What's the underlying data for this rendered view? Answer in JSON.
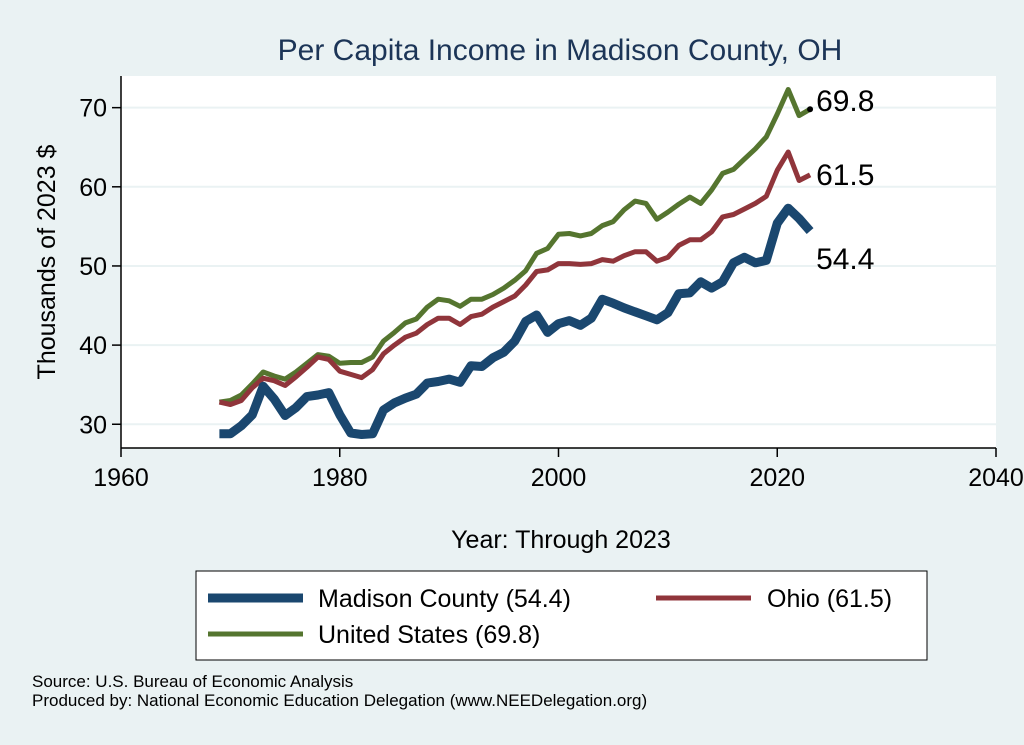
{
  "chart_data": {
    "type": "line",
    "title": "Per Capita Income in Madison County, OH",
    "xlabel": "Year: Through 2023",
    "ylabel": "Thousands of 2023 $",
    "xlim": [
      1960,
      2040
    ],
    "ylim": [
      27,
      74
    ],
    "xticks": [
      1960,
      1980,
      2000,
      2020,
      2040
    ],
    "yticks": [
      30,
      40,
      50,
      60,
      70
    ],
    "grid": true,
    "x": [
      1969,
      1970,
      1971,
      1972,
      1973,
      1974,
      1975,
      1976,
      1977,
      1978,
      1979,
      1980,
      1981,
      1982,
      1983,
      1984,
      1985,
      1986,
      1987,
      1988,
      1989,
      1990,
      1991,
      1992,
      1993,
      1994,
      1995,
      1996,
      1997,
      1998,
      1999,
      2000,
      2001,
      2002,
      2003,
      2004,
      2005,
      2006,
      2007,
      2008,
      2009,
      2010,
      2011,
      2012,
      2013,
      2014,
      2015,
      2016,
      2017,
      2018,
      2019,
      2020,
      2021,
      2022,
      2023
    ],
    "series": [
      {
        "name": "Madison County",
        "color": "#1a476f",
        "width": 9,
        "end_label": "54.4",
        "values": [
          28.8,
          28.8,
          29.8,
          31.2,
          34.8,
          33.2,
          31.1,
          32.1,
          33.5,
          33.7,
          34.0,
          31.2,
          28.9,
          28.7,
          28.8,
          31.8,
          32.7,
          33.3,
          33.8,
          35.2,
          35.4,
          35.7,
          35.3,
          37.4,
          37.3,
          38.4,
          39.1,
          40.5,
          43.0,
          43.8,
          41.6,
          42.7,
          43.1,
          42.5,
          43.4,
          45.8,
          45.3,
          44.7,
          44.2,
          43.7,
          43.2,
          44.1,
          46.5,
          46.6,
          48.0,
          47.2,
          48.0,
          50.4,
          51.1,
          50.4,
          50.7,
          55.4,
          57.3,
          56.0,
          54.4
        ]
      },
      {
        "name": "Ohio",
        "color": "#90353b",
        "width": 5,
        "end_label": "61.5",
        "values": [
          32.8,
          32.5,
          33.0,
          34.6,
          35.8,
          35.5,
          34.9,
          36.0,
          37.2,
          38.5,
          38.2,
          36.7,
          36.3,
          35.9,
          36.9,
          38.9,
          40.0,
          41.0,
          41.5,
          42.6,
          43.4,
          43.4,
          42.6,
          43.6,
          43.9,
          44.8,
          45.5,
          46.2,
          47.6,
          49.3,
          49.5,
          50.3,
          50.3,
          50.2,
          50.3,
          50.8,
          50.6,
          51.3,
          51.8,
          51.8,
          50.6,
          51.1,
          52.6,
          53.3,
          53.3,
          54.3,
          56.2,
          56.5,
          57.2,
          57.9,
          58.8,
          62.1,
          64.4,
          60.8,
          61.5
        ]
      },
      {
        "name": "United States",
        "color": "#55752f",
        "width": 5,
        "end_label": "69.8",
        "values": [
          32.8,
          33.0,
          33.7,
          35.1,
          36.6,
          36.1,
          35.7,
          36.6,
          37.7,
          38.8,
          38.6,
          37.7,
          37.8,
          37.8,
          38.5,
          40.5,
          41.6,
          42.8,
          43.3,
          44.8,
          45.8,
          45.6,
          44.9,
          45.8,
          45.8,
          46.4,
          47.2,
          48.2,
          49.4,
          51.6,
          52.2,
          54.0,
          54.1,
          53.8,
          54.1,
          55.1,
          55.6,
          57.1,
          58.2,
          57.9,
          55.9,
          56.8,
          57.8,
          58.7,
          57.9,
          59.6,
          61.7,
          62.2,
          63.5,
          64.8,
          66.3,
          69.2,
          72.3,
          69.0,
          69.8
        ]
      }
    ]
  },
  "legend": {
    "items": [
      {
        "label": "Madison County (54.4)",
        "color": "#1a476f",
        "width": 9
      },
      {
        "label": "Ohio (61.5)",
        "color": "#90353b",
        "width": 5
      },
      {
        "label": "United States (69.8)",
        "color": "#55752f",
        "width": 5
      }
    ]
  },
  "footer": {
    "source": "Source: U.S. Bureau of Economic Analysis",
    "produced": "Produced by: National Economic Education Delegation (www.NEEDelegation.org)"
  }
}
